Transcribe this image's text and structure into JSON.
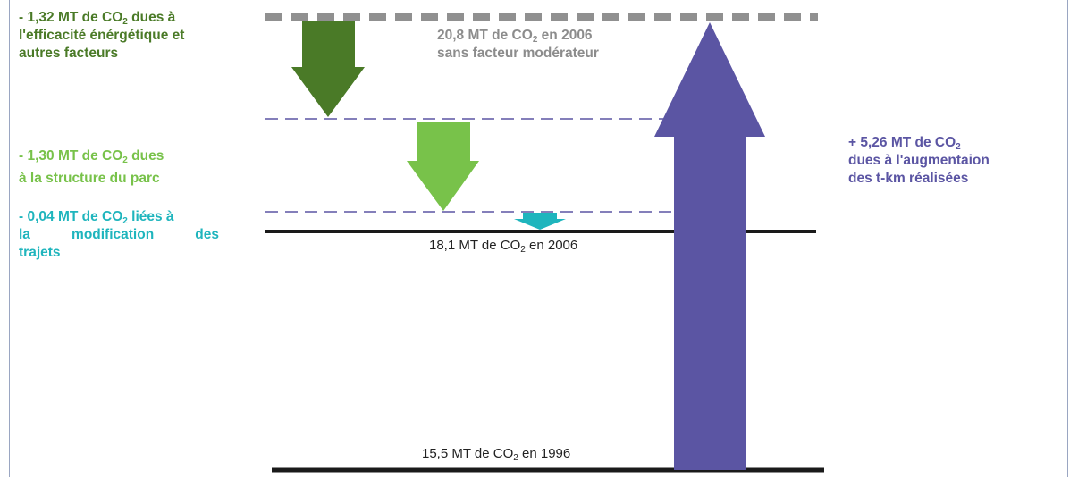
{
  "colors": {
    "dark_green": "#4a7a27",
    "light_green": "#78c24a",
    "teal": "#1fb5bd",
    "purple": "#5b55a3",
    "gray_dashed": "#909090",
    "black_line": "#1a1a1a",
    "purple_dashed": "#5b55a3"
  },
  "labels": {
    "efficiency": {
      "line1_pre": "- 1,32 MT de CO",
      "line1_sub": "2",
      "line1_post": " dues à",
      "line2": "l'efficacité énérgétique et",
      "line3": "autres facteurs"
    },
    "structure": {
      "line1_pre": "- 1,30 MT de CO",
      "line1_sub": "2",
      "line1_post": " dues",
      "line2": "à la structure du parc"
    },
    "trips": {
      "line1_pre": "- 0,04 MT de CO",
      "line1_sub": "2",
      "line1_post": " liées à",
      "line2": "la modification des",
      "line3": "trajets"
    },
    "increase": {
      "line1_pre": "+ 5,26 MT de CO",
      "line1_sub": "2",
      "line2": "dues  à l'augmentaion",
      "line3": "des t-km réalisées"
    },
    "no_moderation": {
      "line1_pre": "20,8 MT de CO",
      "line1_sub": "2",
      "line1_post": " en 2006",
      "line2": "sans facteur modérateur"
    },
    "level_2006": {
      "pre": "18,1 MT de CO",
      "sub": "2",
      "post": " en 2006"
    },
    "level_1996": {
      "pre": "15,5 MT de CO",
      "sub": "2",
      "post": " en 1996"
    }
  }
}
